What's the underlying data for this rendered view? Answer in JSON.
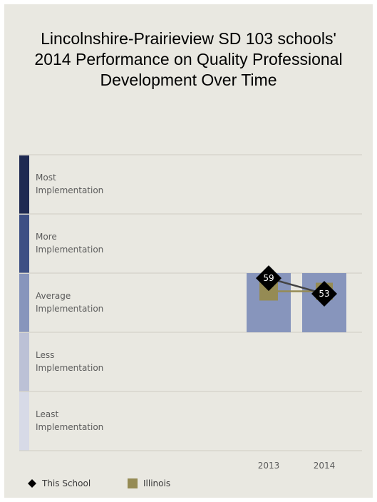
{
  "title": "Lincolnshire-Prairieview SD 103 schools' 2014 Performance on Quality Professional Development Over Time",
  "title_lines": [
    "Lincolnshire-Prairieview SD 103 schools'",
    "2014 Performance on Quality Professional",
    "Development Over Time"
  ],
  "chart_data": {
    "type": "line",
    "categories": [
      "2013",
      "2014"
    ],
    "bands": [
      {
        "lines": [
          "Most",
          "Implementation"
        ],
        "color": "#1f2a52"
      },
      {
        "lines": [
          "More",
          "Implementation"
        ],
        "color": "#3d4f84"
      },
      {
        "lines": [
          "Average",
          "Implementation"
        ],
        "color": "#8795bc"
      },
      {
        "lines": [
          "Less",
          "Implementation"
        ],
        "color": "#bcc1d6"
      },
      {
        "lines": [
          "Least",
          "Implementation"
        ],
        "color": "#d7dae7"
      }
    ],
    "category_band": "Average Implementation",
    "series": [
      {
        "name": "This School",
        "values": [
          59,
          53
        ],
        "marker": "diamond",
        "color": "#000000",
        "line_color": "#444444"
      },
      {
        "name": "Illinois",
        "values": [
          50,
          50
        ],
        "marker": "square",
        "color": "#958b54",
        "line_color": "#958b54"
      }
    ],
    "data_labels": [
      "59",
      "53"
    ],
    "ylim": [
      0,
      100
    ],
    "colors": {
      "background": "#e9e8e1",
      "bar": "#8795bc",
      "gridline": "#cfcdc4"
    },
    "legend_position": "bottom-left"
  }
}
